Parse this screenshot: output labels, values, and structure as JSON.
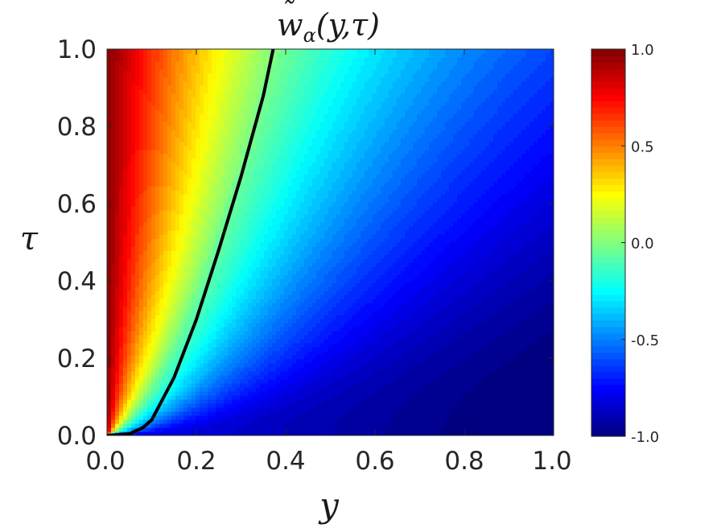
{
  "chart_data": {
    "type": "heatmap",
    "title": "w̃α(y,τ)",
    "title_parts": {
      "tilde": "˜",
      "symbol": "w",
      "subscript": "α",
      "args": "(y,τ)"
    },
    "xlabel": "y",
    "ylabel": "τ",
    "xlim": [
      0.0,
      1.0
    ],
    "ylim": [
      0.0,
      1.0
    ],
    "x_ticks": [
      "0.0",
      "0.2",
      "0.4",
      "0.6",
      "0.8",
      "1.0"
    ],
    "y_ticks": [
      "0.0",
      "0.2",
      "0.4",
      "0.6",
      "0.8",
      "1.0"
    ],
    "colorbar": {
      "range": [
        -1.0,
        1.0
      ],
      "ticks": [
        "1.0",
        "0.5",
        "0.0",
        "-0.5",
        "-1.0"
      ],
      "colormap": "jet"
    },
    "zero_contour": {
      "color": "#000000",
      "points": [
        [
          0.0,
          0.0
        ],
        [
          0.05,
          0.004
        ],
        [
          0.08,
          0.02
        ],
        [
          0.1,
          0.04
        ],
        [
          0.15,
          0.15
        ],
        [
          0.2,
          0.3
        ],
        [
          0.25,
          0.48
        ],
        [
          0.3,
          0.67
        ],
        [
          0.35,
          0.88
        ],
        [
          0.372,
          1.0
        ]
      ]
    },
    "grid": false,
    "legend": "none"
  }
}
